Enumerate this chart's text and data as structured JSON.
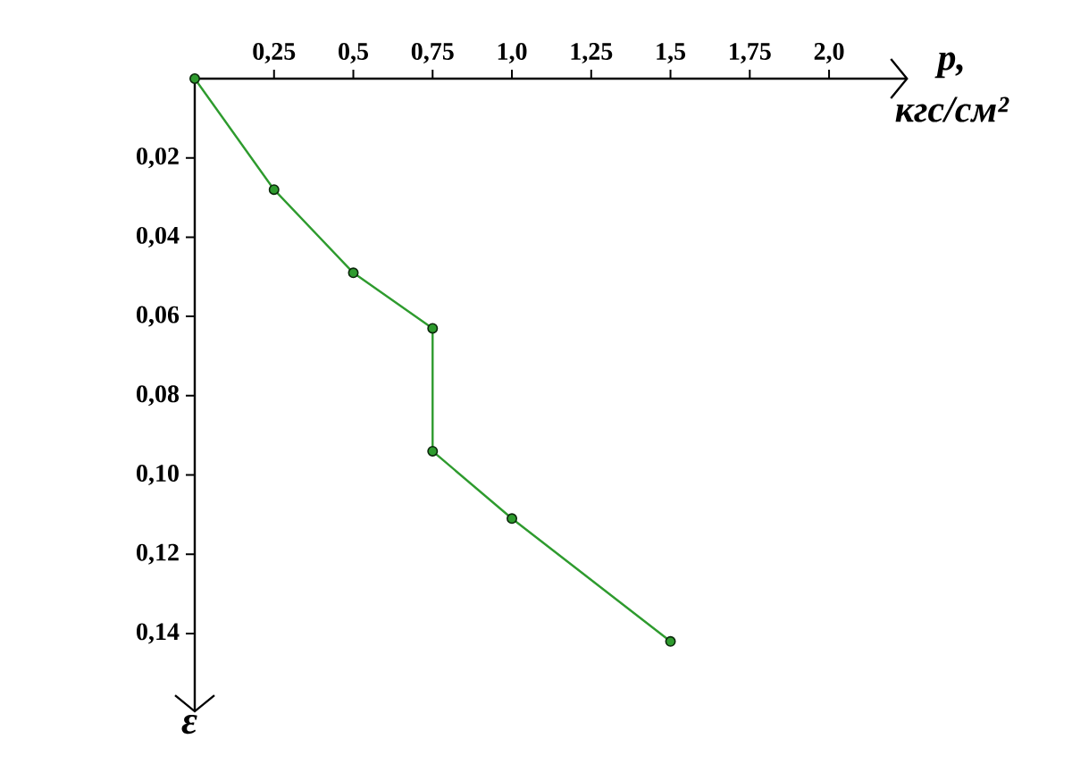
{
  "chart_data": {
    "type": "line",
    "xlabel": "p, кгс/см²",
    "ylabel": "ε",
    "x": [
      0,
      0.25,
      0.5,
      0.75,
      0.75,
      1.0,
      1.5
    ],
    "values": [
      0,
      0.028,
      0.049,
      0.063,
      0.094,
      0.111,
      0.142
    ],
    "color": "#2e9b2e",
    "xlim": [
      0,
      2.25
    ],
    "ylim": [
      0.16,
      0
    ],
    "xticks": [
      {
        "value": 0.25,
        "label": "0,25"
      },
      {
        "value": 0.5,
        "label": "0,5"
      },
      {
        "value": 0.75,
        "label": "0,75"
      },
      {
        "value": 1.0,
        "label": "1,0"
      },
      {
        "value": 1.25,
        "label": "1,25"
      },
      {
        "value": 1.5,
        "label": "1,5"
      },
      {
        "value": 1.75,
        "label": "1,75"
      },
      {
        "value": 2.0,
        "label": "2,0"
      }
    ],
    "yticks": [
      {
        "value": 0.02,
        "label": "0,02"
      },
      {
        "value": 0.04,
        "label": "0,04"
      },
      {
        "value": 0.06,
        "label": "0,06"
      },
      {
        "value": 0.08,
        "label": "0,08"
      },
      {
        "value": 0.1,
        "label": "0,10"
      },
      {
        "value": 0.12,
        "label": "0,12"
      },
      {
        "value": 0.14,
        "label": "0,14"
      }
    ],
    "marker": "circle",
    "line_style": "solid"
  }
}
